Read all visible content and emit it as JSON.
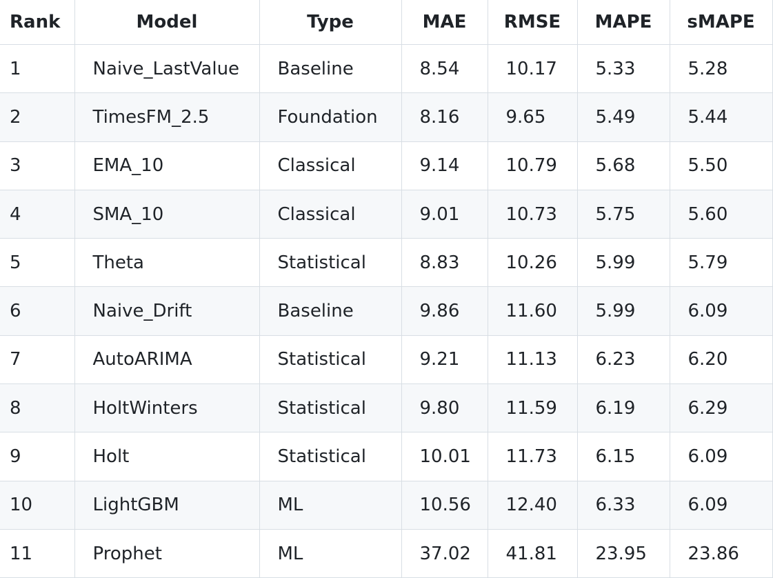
{
  "table": {
    "header": [
      "Rank",
      "Model",
      "Type",
      "MAE",
      "RMSE",
      "MAPE",
      "sMAPE"
    ],
    "rows": [
      [
        "1",
        "Naive_LastValue",
        "Baseline",
        "8.54",
        "10.17",
        "5.33",
        "5.28"
      ],
      [
        "2",
        "TimesFM_2.5",
        "Foundation",
        "8.16",
        "9.65",
        "5.49",
        "5.44"
      ],
      [
        "3",
        "EMA_10",
        "Classical",
        "9.14",
        "10.79",
        "5.68",
        "5.50"
      ],
      [
        "4",
        "SMA_10",
        "Classical",
        "9.01",
        "10.73",
        "5.75",
        "5.60"
      ],
      [
        "5",
        "Theta",
        "Statistical",
        "8.83",
        "10.26",
        "5.99",
        "5.79"
      ],
      [
        "6",
        "Naive_Drift",
        "Baseline",
        "9.86",
        "11.60",
        "5.99",
        "6.09"
      ],
      [
        "7",
        "AutoARIMA",
        "Statistical",
        "9.21",
        "11.13",
        "6.23",
        "6.20"
      ],
      [
        "8",
        "HoltWinters",
        "Statistical",
        "9.80",
        "11.59",
        "6.19",
        "6.29"
      ],
      [
        "9",
        "Holt",
        "Statistical",
        "10.01",
        "11.73",
        "6.15",
        "6.09"
      ],
      [
        "10",
        "LightGBM",
        "ML",
        "10.56",
        "12.40",
        "6.33",
        "6.09"
      ],
      [
        "11",
        "Prophet",
        "ML",
        "37.02",
        "41.81",
        "23.95",
        "23.86"
      ]
    ]
  }
}
